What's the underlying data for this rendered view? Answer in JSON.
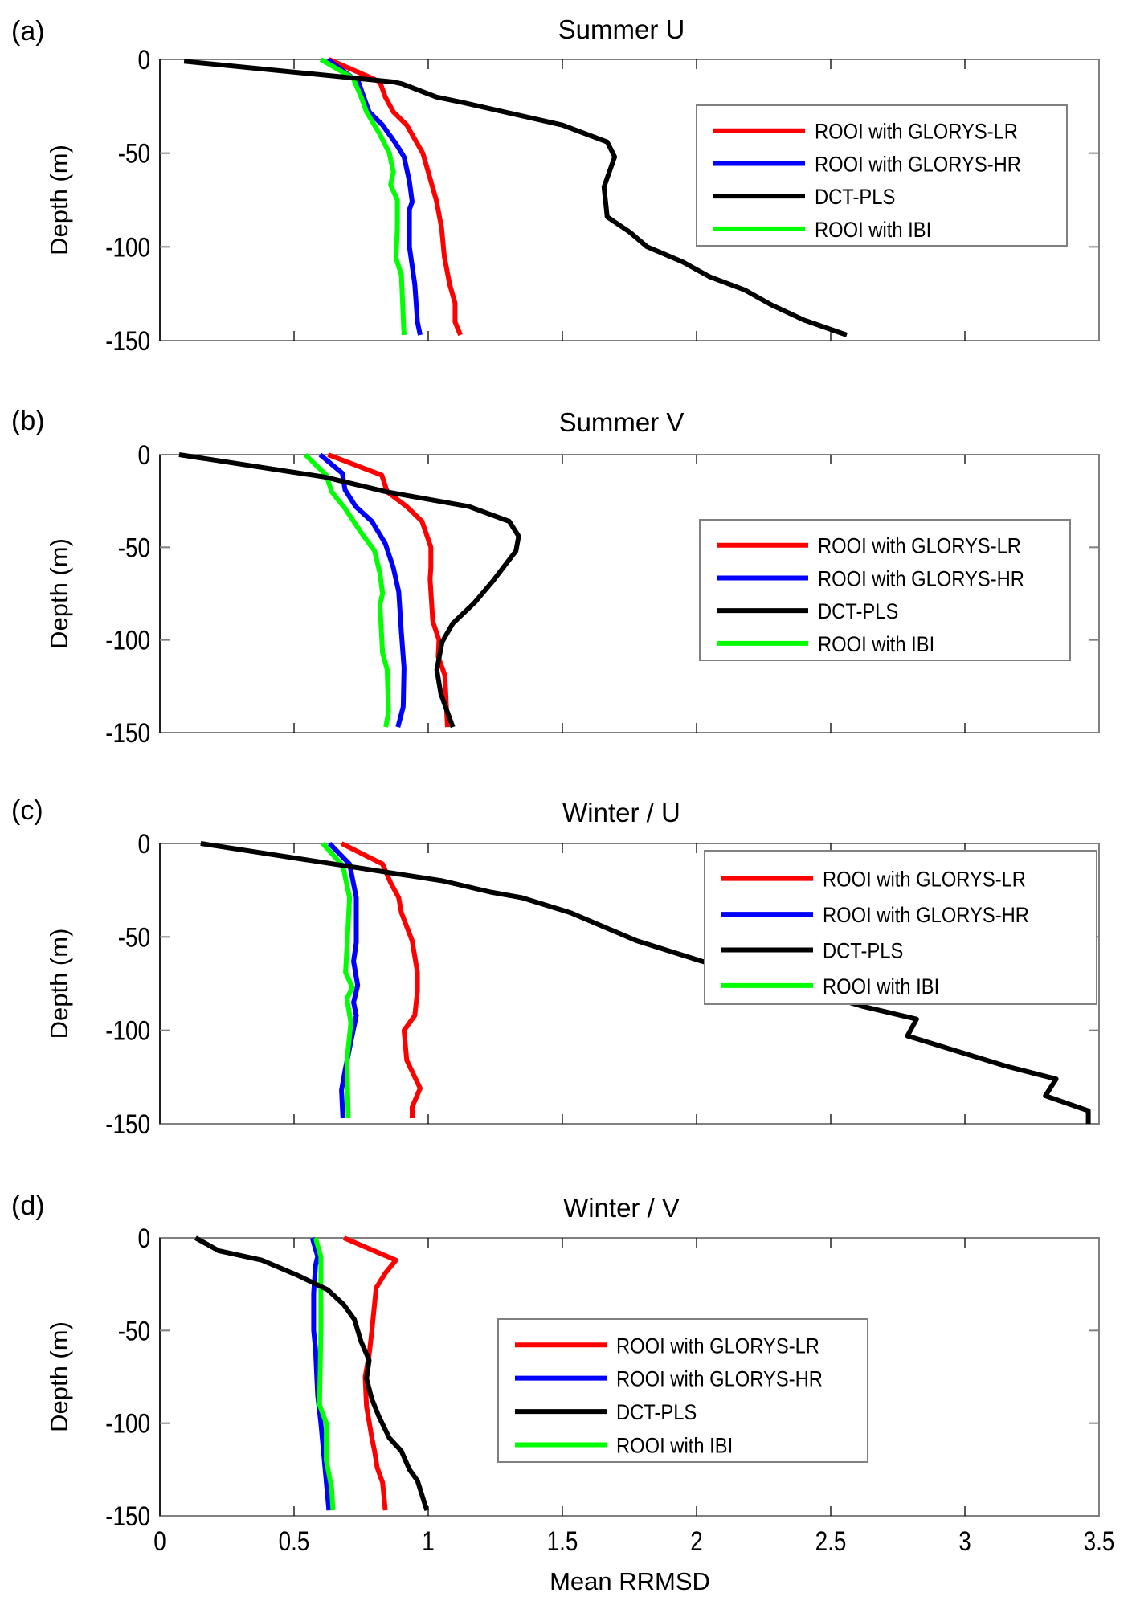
{
  "figure": {
    "xlabel": "Mean RRMSD",
    "ylabel": "Depth (m)"
  },
  "chart_data": [
    {
      "type": "line",
      "panel_label": "(a)",
      "title": "Summer U",
      "xlabel": "",
      "ylabel": "Depth (m)",
      "xlim": [
        0,
        3.5
      ],
      "ylim": [
        -150,
        0
      ],
      "xticks": [
        0,
        0.5,
        1,
        1.5,
        2,
        2.5,
        3,
        3.5
      ],
      "xtick_labels_visible": false,
      "yticks": [
        0,
        -50,
        -100,
        -150
      ],
      "ytick_labels": [
        "0",
        "-50",
        "-100",
        "-150"
      ],
      "grid": false,
      "legend_position": "upper-right",
      "series": [
        {
          "name": "ROOI with GLORYS-LR",
          "color": "#ff0000",
          "x": [
            0.63,
            0.79,
            0.82,
            0.84,
            0.87,
            0.92,
            0.96,
            0.98,
            1.0,
            1.03,
            1.05,
            1.06,
            1.08,
            1.1,
            1.1,
            1.12
          ],
          "y": [
            0,
            -10,
            -12,
            -20,
            -28,
            -35,
            -45,
            -50,
            -60,
            -75,
            -90,
            -105,
            -120,
            -130,
            -140,
            -147
          ]
        },
        {
          "name": "ROOI with GLORYS-HR",
          "color": "#0000ff",
          "x": [
            0.625,
            0.72,
            0.74,
            0.76,
            0.78,
            0.83,
            0.88,
            0.91,
            0.93,
            0.94,
            0.93,
            0.93,
            0.95,
            0.96,
            0.97
          ],
          "y": [
            0,
            -10,
            -12,
            -20,
            -28,
            -35,
            -45,
            -52,
            -65,
            -76,
            -80,
            -100,
            -120,
            -140,
            -147
          ]
        },
        {
          "name": "DCT-PLS",
          "color": "#000000",
          "x": [
            0.09,
            0.87,
            0.902,
            1.03,
            1.13,
            1.5,
            1.667,
            1.695,
            1.655,
            1.667,
            1.75,
            1.816,
            1.948,
            2.05,
            2.18,
            2.28,
            2.4,
            2.56
          ],
          "y": [
            -1,
            -12,
            -13,
            -20,
            -23,
            -35,
            -44,
            -52,
            -68,
            -84,
            -92,
            -100,
            -108,
            -116,
            -123,
            -131,
            -139,
            -147
          ]
        },
        {
          "name": "ROOI with IBI",
          "color": "#00ff00",
          "x": [
            0.6,
            0.72,
            0.75,
            0.77,
            0.82,
            0.855,
            0.87,
            0.86,
            0.885,
            0.885,
            0.88,
            0.9,
            0.91
          ],
          "y": [
            0,
            -10,
            -20,
            -28,
            -40,
            -50,
            -60,
            -67,
            -75,
            -90,
            -106,
            -115,
            -147
          ]
        }
      ]
    },
    {
      "type": "line",
      "panel_label": "(b)",
      "title": "Summer V",
      "xlabel": "",
      "ylabel": "Depth (m)",
      "xlim": [
        0,
        3.5
      ],
      "ylim": [
        -150,
        0
      ],
      "xticks": [
        0,
        0.5,
        1,
        1.5,
        2,
        2.5,
        3,
        3.5
      ],
      "xtick_labels_visible": false,
      "yticks": [
        0,
        -50,
        -100,
        -150
      ],
      "ytick_labels": [
        "0",
        "-50",
        "-100",
        "-150"
      ],
      "grid": false,
      "legend_position": "center-right",
      "series": [
        {
          "name": "ROOI with GLORYS-LR",
          "color": "#ff0000",
          "x": [
            0.627,
            0.827,
            0.847,
            0.92,
            0.977,
            1.01,
            1.01,
            1.007,
            1.017,
            1.04,
            1.037,
            1.062,
            1.072
          ],
          "y": [
            0,
            -11,
            -20,
            -28,
            -36,
            -50,
            -61,
            -67,
            -90,
            -100,
            -109,
            -119,
            -147
          ]
        },
        {
          "name": "ROOI with GLORYS-HR",
          "color": "#0000ff",
          "x": [
            0.597,
            0.68,
            0.69,
            0.73,
            0.79,
            0.84,
            0.87,
            0.89,
            0.9,
            0.91,
            0.907,
            0.887
          ],
          "y": [
            0,
            -10,
            -19,
            -28,
            -36,
            -48,
            -61,
            -74,
            -96,
            -115,
            -136,
            -147
          ]
        },
        {
          "name": "DCT-PLS",
          "color": "#000000",
          "x": [
            0.072,
            0.612,
            0.842,
            1.152,
            1.302,
            1.337,
            1.327,
            1.242,
            1.172,
            1.092,
            1.052,
            1.032,
            1.047,
            1.092
          ],
          "y": [
            0,
            -12,
            -20,
            -28,
            -36,
            -44,
            -52,
            -68,
            -80,
            -91,
            -101,
            -116,
            -129,
            -147
          ]
        },
        {
          "name": "ROOI with IBI",
          "color": "#00ff00",
          "x": [
            0.542,
            0.62,
            0.64,
            0.69,
            0.75,
            0.8,
            0.82,
            0.83,
            0.82,
            0.83,
            0.847,
            0.852,
            0.842
          ],
          "y": [
            0,
            -11,
            -20,
            -29,
            -42,
            -52,
            -64,
            -75,
            -81,
            -107,
            -116,
            -139,
            -147
          ]
        }
      ]
    },
    {
      "type": "line",
      "panel_label": "(c)",
      "title": "Winter / U",
      "xlabel": "",
      "ylabel": "Depth (m)",
      "xlim": [
        0,
        3.5
      ],
      "ylim": [
        -150,
        0
      ],
      "xticks": [
        0,
        0.5,
        1,
        1.5,
        2,
        2.5,
        3,
        3.5
      ],
      "xtick_labels_visible": false,
      "yticks": [
        0,
        -50,
        -100,
        -150
      ],
      "ytick_labels": [
        "0",
        "-50",
        "-100",
        "-150"
      ],
      "grid": false,
      "legend_position": "upper-right",
      "series": [
        {
          "name": "ROOI with GLORYS-LR",
          "color": "#ff0000",
          "x": [
            0.677,
            0.83,
            0.86,
            0.89,
            0.9,
            0.94,
            0.96,
            0.96,
            0.95,
            0.91,
            0.92,
            0.97,
            0.94,
            0.94
          ],
          "y": [
            0,
            -11,
            -21,
            -29,
            -37,
            -52,
            -69,
            -79,
            -92,
            -100,
            -116,
            -131,
            -141,
            -147
          ]
        },
        {
          "name": "ROOI with GLORYS-HR",
          "color": "#0000ff",
          "x": [
            0.632,
            0.707,
            0.732,
            0.732,
            0.722,
            0.737,
            0.722,
            0.732,
            0.712,
            0.692,
            0.677,
            0.682
          ],
          "y": [
            0,
            -11,
            -29,
            -53,
            -63,
            -76,
            -85,
            -92,
            -106,
            -120,
            -132,
            -147
          ]
        },
        {
          "name": "DCT-PLS",
          "color": "#000000",
          "x": [
            0.152,
            1.053,
            1.232,
            1.349,
            1.53,
            1.776,
            2.02,
            2.2,
            2.45,
            2.615,
            2.82,
            2.786,
            3.15,
            3.34,
            3.3,
            3.46,
            3.46
          ],
          "y": [
            0,
            -20,
            -26,
            -29,
            -37,
            -52,
            -63,
            -70,
            -80,
            -87,
            -94,
            -103,
            -119,
            -126,
            -135,
            -143,
            -150
          ]
        },
        {
          "name": "ROOI with IBI",
          "color": "#00ff00",
          "x": [
            0.607,
            0.682,
            0.707,
            0.697,
            0.692,
            0.717,
            0.697,
            0.712,
            0.697,
            0.702
          ],
          "y": [
            0,
            -12,
            -29,
            -56,
            -69,
            -77,
            -83,
            -96,
            -116,
            -147
          ]
        }
      ]
    },
    {
      "type": "line",
      "panel_label": "(d)",
      "title": "Winter / V",
      "xlabel": "Mean RRMSD",
      "ylabel": "Depth (m)",
      "xlim": [
        0,
        3.5
      ],
      "ylim": [
        -150,
        0
      ],
      "xticks": [
        0,
        0.5,
        1,
        1.5,
        2,
        2.5,
        3,
        3.5
      ],
      "xtick_labels": [
        "0",
        "0.5",
        "1",
        "1.5",
        "2",
        "2.5",
        "3",
        "3.5"
      ],
      "xtick_labels_visible": true,
      "yticks": [
        0,
        -50,
        -100,
        -150
      ],
      "ytick_labels": [
        "0",
        "-50",
        "-100",
        "-150"
      ],
      "grid": false,
      "legend_position": "center",
      "series": [
        {
          "name": "ROOI with GLORYS-LR",
          "color": "#ff0000",
          "x": [
            0.686,
            0.88,
            0.84,
            0.806,
            0.79,
            0.78,
            0.765,
            0.77,
            0.79,
            0.8,
            0.81,
            0.83,
            0.84
          ],
          "y": [
            0,
            -12,
            -19,
            -27,
            -50,
            -63,
            -75,
            -91,
            -108,
            -115,
            -124,
            -132,
            -147
          ]
        },
        {
          "name": "ROOI with GLORYS-HR",
          "color": "#0000ff",
          "x": [
            0.568,
            0.588,
            0.58,
            0.573,
            0.573,
            0.58,
            0.588,
            0.6,
            0.63
          ],
          "y": [
            0,
            -10,
            -15,
            -30,
            -50,
            -60,
            -85,
            -100,
            -147
          ]
        },
        {
          "name": "DCT-PLS",
          "color": "#000000",
          "x": [
            0.133,
            0.22,
            0.38,
            0.51,
            0.625,
            0.685,
            0.725,
            0.75,
            0.78,
            0.77,
            0.79,
            0.815,
            0.855,
            0.9,
            0.93,
            0.96,
            0.995
          ],
          "y": [
            0,
            -7,
            -12,
            -20,
            -28,
            -36,
            -44,
            -56,
            -66,
            -76,
            -87,
            -96,
            -108,
            -115,
            -125,
            -131,
            -147
          ]
        },
        {
          "name": "ROOI with IBI",
          "color": "#00ff00",
          "x": [
            0.58,
            0.6,
            0.6,
            0.6,
            0.595,
            0.62,
            0.62,
            0.64,
            0.645
          ],
          "y": [
            0,
            -10,
            -20,
            -50,
            -90,
            -100,
            -120,
            -135,
            -147
          ]
        }
      ]
    }
  ]
}
